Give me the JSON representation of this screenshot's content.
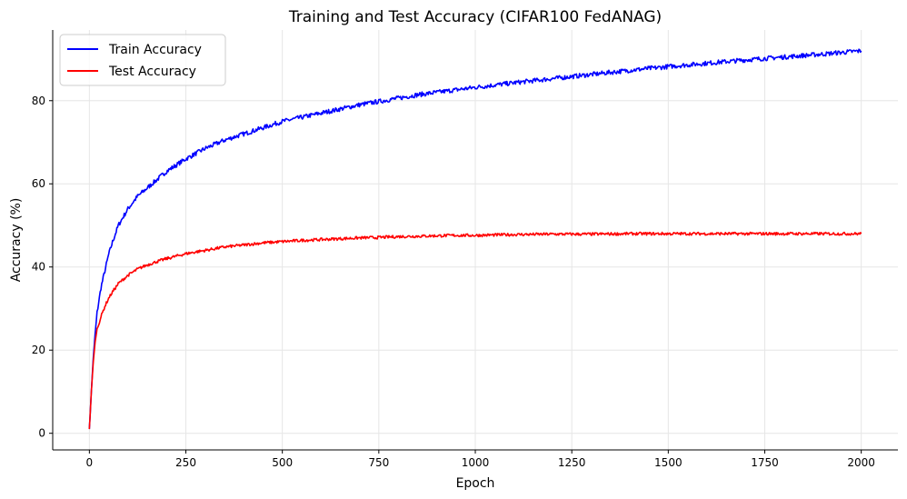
{
  "chart_data": {
    "type": "line",
    "title": "Training and Test Accuracy (CIFAR100 FedANAG)",
    "xlabel": "Epoch",
    "ylabel": "Accuracy (%)",
    "xlim": [
      -95,
      2095
    ],
    "ylim": [
      -4,
      97
    ],
    "xticks": [
      0,
      250,
      500,
      750,
      1000,
      1250,
      1500,
      1750,
      2000
    ],
    "yticks": [
      0,
      20,
      40,
      60,
      80
    ],
    "grid": true,
    "legend_position": "top-left",
    "series": [
      {
        "name": "Train Accuracy",
        "color": "#0000ff",
        "x": [
          0,
          5,
          10,
          15,
          20,
          30,
          40,
          50,
          60,
          75,
          100,
          125,
          150,
          175,
          200,
          250,
          300,
          350,
          400,
          450,
          500,
          550,
          600,
          650,
          700,
          750,
          800,
          850,
          900,
          950,
          1000,
          1100,
          1200,
          1300,
          1400,
          1500,
          1600,
          1700,
          1800,
          1900,
          2000
        ],
        "y": [
          1,
          10,
          18,
          24,
          29,
          35,
          39,
          43,
          46,
          50,
          54,
          57,
          59,
          61,
          63,
          66,
          68.5,
          70.5,
          72,
          73.5,
          75,
          76,
          77,
          78,
          79,
          79.8,
          80.6,
          81.4,
          82,
          82.6,
          83.2,
          84.3,
          85.3,
          86.3,
          87.3,
          88.2,
          89,
          89.8,
          90.5,
          91.2,
          92
        ]
      },
      {
        "name": "Test Accuracy",
        "color": "#ff0000",
        "x": [
          0,
          5,
          10,
          15,
          20,
          30,
          40,
          50,
          60,
          75,
          100,
          125,
          150,
          175,
          200,
          250,
          300,
          350,
          400,
          450,
          500,
          550,
          600,
          650,
          700,
          750,
          800,
          850,
          900,
          950,
          1000,
          1100,
          1200,
          1300,
          1400,
          1500,
          1600,
          1700,
          1800,
          1900,
          2000
        ],
        "y": [
          1,
          10,
          17,
          22,
          25,
          28,
          30.5,
          32.5,
          34,
          36,
          38,
          39.5,
          40.5,
          41.3,
          42,
          43.2,
          44,
          44.8,
          45.3,
          45.8,
          46.1,
          46.4,
          46.6,
          46.8,
          47,
          47.1,
          47.3,
          47.4,
          47.5,
          47.6,
          47.6,
          47.8,
          47.9,
          47.9,
          48,
          48,
          48,
          48,
          48,
          48,
          48
        ]
      }
    ]
  }
}
